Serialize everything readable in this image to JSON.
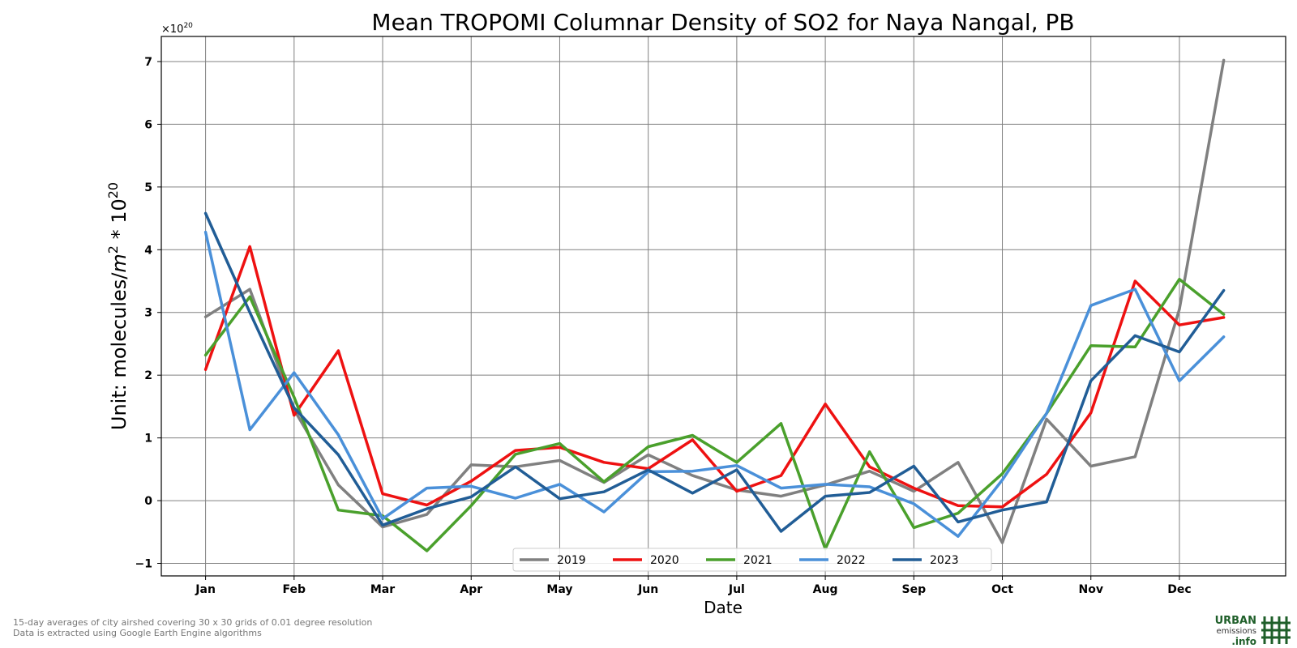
{
  "chart_data": {
    "type": "line",
    "title": "Mean TROPOMI Columnar Density of SO2 for Naya Nangal, PB",
    "xlabel": "Date",
    "ylabel": "Unit: molecules/m² * 10²⁰",
    "ylabel_parts": {
      "text": "Unit: molecules/",
      "var": "m",
      "sup1": "2",
      "mid": " * 10",
      "sup2": "20"
    },
    "offset_text": {
      "base": "×10",
      "exp": "20"
    },
    "x_tick_labels": [
      "Jan",
      "Feb",
      "Mar",
      "Apr",
      "May",
      "Jun",
      "Jul",
      "Aug",
      "Sep",
      "Oct",
      "Nov",
      "Dec"
    ],
    "y_ticks": [
      -1,
      0,
      1,
      2,
      3,
      4,
      5,
      6,
      7
    ],
    "y_tick_labels": [
      "−1",
      "0",
      "1",
      "2",
      "3",
      "4",
      "5",
      "6",
      "7"
    ],
    "ylim": [
      -1.2,
      7.4
    ],
    "xlim": [
      -0.5,
      12.2
    ],
    "grid": true,
    "legend_position": "bottom-center",
    "x_periods_per_month": 2,
    "series": [
      {
        "name": "2019",
        "color": "#808080",
        "values": [
          2.93,
          3.37,
          1.45,
          0.25,
          -0.42,
          -0.22,
          0.57,
          0.54,
          0.64,
          0.29,
          0.73,
          0.4,
          0.17,
          0.07,
          0.25,
          0.47,
          0.15,
          0.61,
          -0.67,
          1.3,
          0.55,
          0.7,
          3.05,
          7.02
        ]
      },
      {
        "name": "2020",
        "color": "#ee1111",
        "values": [
          2.09,
          4.05,
          1.36,
          2.39,
          0.11,
          -0.07,
          0.31,
          0.8,
          0.85,
          0.61,
          0.51,
          0.97,
          0.15,
          0.4,
          1.54,
          0.54,
          0.2,
          -0.08,
          -0.1,
          0.42,
          1.4,
          3.5,
          2.8,
          2.92
        ]
      },
      {
        "name": "2021",
        "color": "#4aa02c",
        "values": [
          2.32,
          3.25,
          1.65,
          -0.15,
          -0.24,
          -0.8,
          -0.08,
          0.74,
          0.91,
          0.3,
          0.86,
          1.04,
          0.61,
          1.23,
          -0.77,
          0.78,
          -0.43,
          -0.2,
          0.43,
          1.39,
          2.47,
          2.45,
          3.53,
          2.97
        ]
      },
      {
        "name": "2022",
        "color": "#4a90d9",
        "values": [
          4.28,
          1.13,
          2.04,
          1.05,
          -0.29,
          0.2,
          0.23,
          0.04,
          0.26,
          -0.18,
          0.46,
          0.47,
          0.56,
          0.2,
          0.26,
          0.22,
          -0.05,
          -0.57,
          0.33,
          1.39,
          3.11,
          3.37,
          1.91,
          2.61
        ]
      },
      {
        "name": "2023",
        "color": "#215d96",
        "values": [
          4.58,
          3.0,
          1.48,
          0.73,
          -0.39,
          -0.13,
          0.06,
          0.54,
          0.03,
          0.14,
          0.49,
          0.12,
          0.49,
          -0.49,
          0.07,
          0.13,
          0.55,
          -0.34,
          -0.15,
          -0.02,
          1.91,
          2.63,
          2.37,
          3.35
        ]
      }
    ]
  },
  "footnote": {
    "line1": "15-day averages of city airshed covering 30 x 30 grids of 0.01 degree resolution",
    "line2": "Data is extracted using Google Earth Engine algorithms"
  },
  "logo": {
    "line1": "URBAN",
    "line2": "emissions",
    "line3": ".info"
  }
}
